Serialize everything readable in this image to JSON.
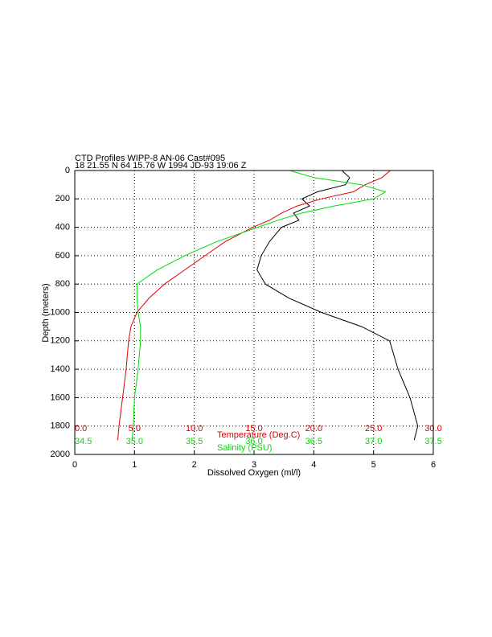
{
  "chart_data": {
    "type": "line",
    "title": "CTD Profiles WIPP-8 AN-06 Cast#095",
    "subtitle": "18 21.55 N  64 15.76 W  1994 JD-93 19:06 Z",
    "ylabel": "Depth (meters)",
    "ylim": [
      0,
      2000
    ],
    "yticks": [
      0,
      200,
      400,
      600,
      800,
      1000,
      1200,
      1400,
      1600,
      1800,
      2000
    ],
    "grid": true,
    "depth": [
      0,
      50,
      100,
      150,
      200,
      250,
      300,
      350,
      400,
      500,
      600,
      700,
      800,
      900,
      1000,
      1100,
      1200,
      1400,
      1600,
      1800,
      1900
    ],
    "series": [
      {
        "name": "Dissolved Oxygen (ml/l)",
        "color": "#000000",
        "xlim": [
          0,
          6
        ],
        "xticks": [
          0,
          1,
          2,
          3,
          4,
          5,
          6
        ],
        "tick_row": "bottom",
        "values": [
          4.47,
          4.6,
          4.53,
          4.06,
          3.8,
          3.93,
          3.66,
          3.75,
          3.46,
          3.26,
          3.12,
          3.05,
          3.19,
          3.59,
          4.13,
          4.8,
          5.27,
          5.41,
          5.61,
          5.74,
          5.68
        ]
      },
      {
        "name": "Temperature (Deg.C)",
        "color": "#dd0000",
        "xlim": [
          0,
          30
        ],
        "tick_row": "inside-1",
        "xticks": [
          {
            "value": 0,
            "label": "0.0"
          },
          {
            "value": 5,
            "label": "5.0"
          },
          {
            "value": 10,
            "label": "10.0"
          },
          {
            "value": 15,
            "label": "15.0"
          },
          {
            "value": 20,
            "label": "20.0"
          },
          {
            "value": 25,
            "label": "25.0"
          },
          {
            "value": 30,
            "label": "30.0"
          }
        ],
        "values": [
          26.4,
          25.7,
          24.3,
          23.3,
          20.6,
          18.6,
          17.3,
          16.3,
          14.9,
          12.6,
          10.9,
          9.2,
          7.5,
          6.2,
          5.2,
          4.7,
          4.5,
          4.3,
          4.0,
          3.7,
          3.6
        ]
      },
      {
        "name": "Salinity (PSU)",
        "color": "#00dd00",
        "xlim": [
          34.5,
          37.5
        ],
        "tick_row": "inside-2",
        "xticks": [
          34.5,
          {
            "value": 35,
            "label": "35.0"
          },
          35.5,
          {
            "value": 36,
            "label": "36.0"
          },
          36.5,
          {
            "value": 37,
            "label": "37.0"
          },
          37.5
        ],
        "values": [
          36.3,
          36.5,
          36.9,
          37.1,
          37.0,
          36.67,
          36.4,
          36.2,
          36.03,
          35.69,
          35.42,
          35.19,
          35.02,
          35.02,
          35.03,
          35.05,
          35.05,
          35.03,
          35.0,
          34.99,
          34.98
        ]
      }
    ]
  }
}
